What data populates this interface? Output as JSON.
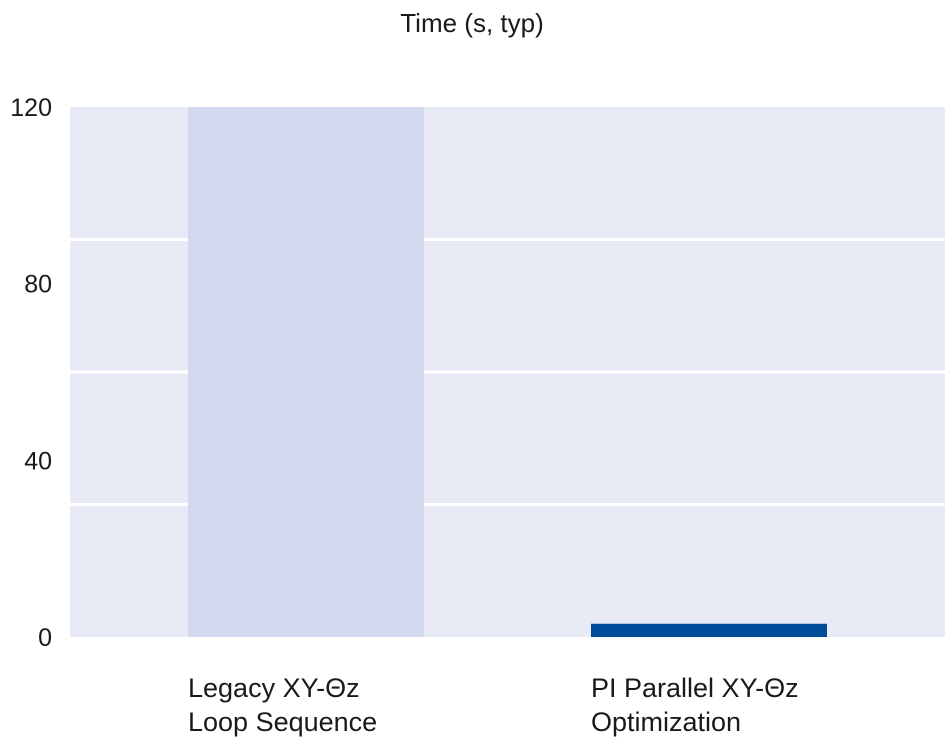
{
  "chart_data": {
    "type": "bar",
    "title": "Time (s, typ)",
    "xlabel": "",
    "ylabel": "",
    "categories": [
      [
        "Legacy XY-Θz",
        "Loop Sequence"
      ],
      [
        "PI Parallel XY-Θz",
        "Optimization"
      ]
    ],
    "values": [
      120,
      3
    ],
    "ylim": [
      0,
      120
    ],
    "yticks": [
      0,
      40,
      80,
      120
    ],
    "grid": true,
    "legend": "none",
    "colors": {
      "plot_background": "#e8eaf5",
      "gridline": "#ffffff",
      "bars": [
        "#d2d8ee",
        "#004c9a"
      ]
    }
  }
}
